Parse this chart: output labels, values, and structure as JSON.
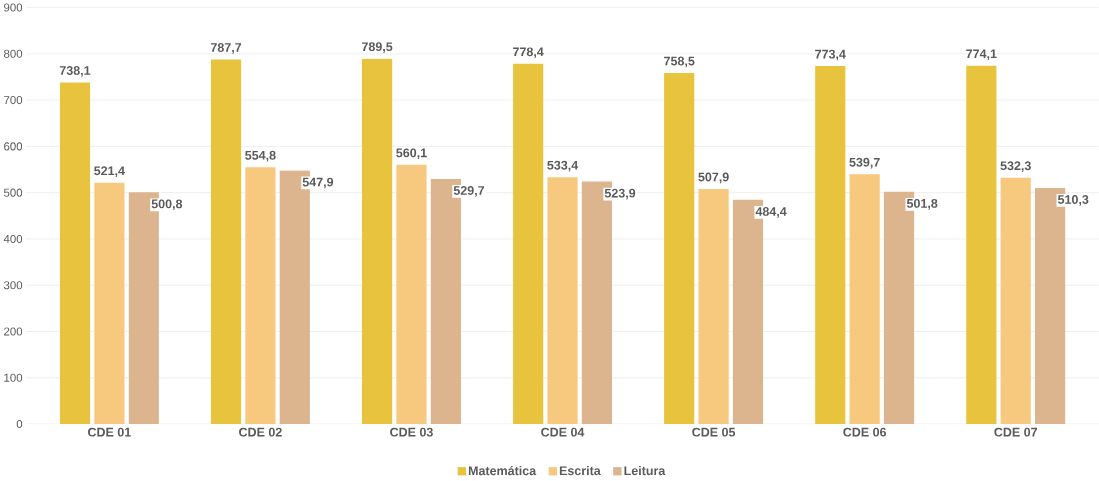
{
  "chart_data": {
    "type": "bar",
    "categories": [
      "CDE 01",
      "CDE 02",
      "CDE 03",
      "CDE 04",
      "CDE 05",
      "CDE 06",
      "CDE 07"
    ],
    "series": [
      {
        "name": "Matemática",
        "color": "#e8c43e",
        "values": [
          738.1,
          787.7,
          789.5,
          778.4,
          758.5,
          773.4,
          774.1
        ],
        "value_labels": [
          "738,1",
          "787,7",
          "789,5",
          "778,4",
          "758,5",
          "773,4",
          "774,1"
        ]
      },
      {
        "name": "Escrita",
        "color": "#f7c97e",
        "values": [
          521.4,
          554.8,
          560.1,
          533.4,
          507.9,
          539.7,
          532.3
        ],
        "value_labels": [
          "521,4",
          "554,8",
          "560,1",
          "533,4",
          "507,9",
          "539,7",
          "532,3"
        ]
      },
      {
        "name": "Leitura",
        "color": "#dcb48e",
        "values": [
          500.8,
          547.9,
          529.7,
          523.9,
          484.4,
          501.8,
          510.3
        ],
        "value_labels": [
          "500,8",
          "547,9",
          "529,7",
          "523,9",
          "484,4",
          "501,8",
          "510,3"
        ]
      }
    ],
    "ylim": [
      0,
      900
    ],
    "yticks": [
      0,
      100,
      200,
      300,
      400,
      500,
      600,
      700,
      800,
      900
    ],
    "grid": "y",
    "legend": "bottom"
  }
}
